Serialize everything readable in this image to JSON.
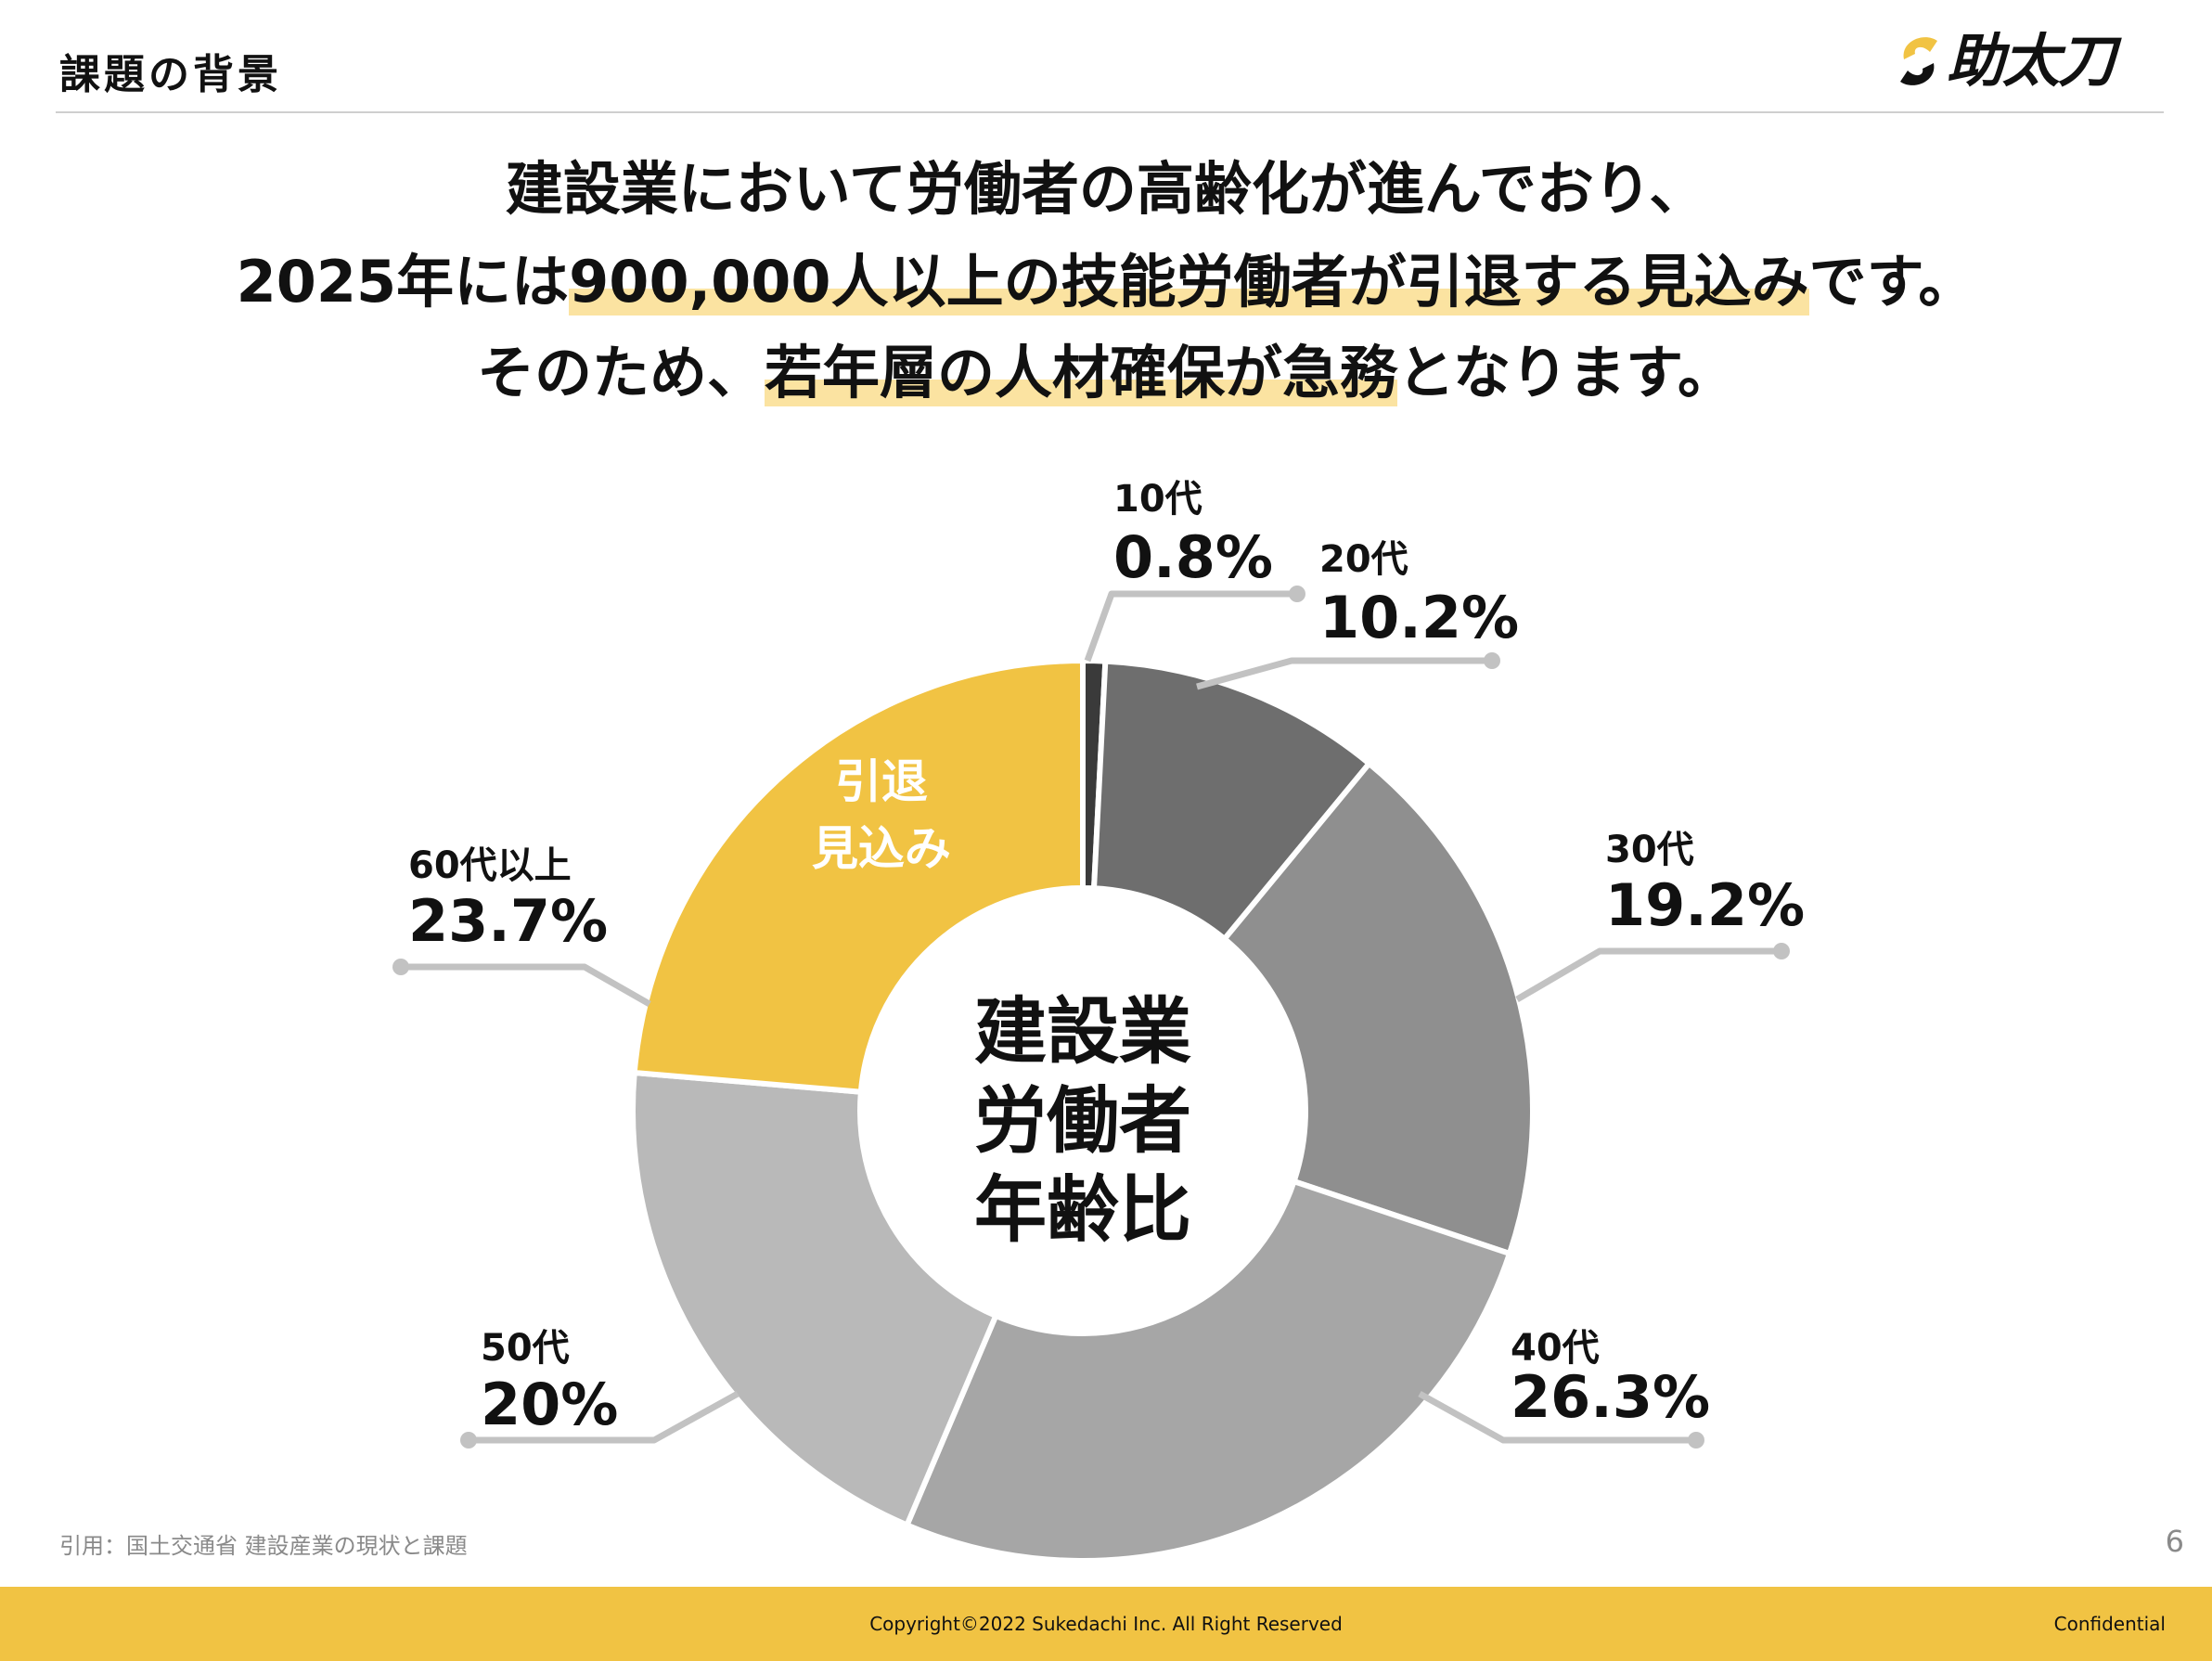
{
  "header": {
    "title": "課題の背景",
    "logo_text": "助太刀"
  },
  "headline": {
    "line1": "建設業において労働者の高齢化が進んでおり、",
    "line2_pre": "2025年には",
    "line2_highlight": "900,000人以上の技能労働者が引退する見込み",
    "line2_post": "です。",
    "line3_pre": "そのため、",
    "line3_highlight": "若年層の人材確保が急務",
    "line3_post": "となります。"
  },
  "colors": {
    "accent": "#f1c343",
    "highlight": "#fbe3a1",
    "teens": "#3a3a3a",
    "twenties": "#6e6e6e",
    "thirties": "#8f8f8f",
    "forties": "#a6a6a6",
    "fifties": "#b9b9b9",
    "leader": "#c2c2c2"
  },
  "chart_data": {
    "type": "pie",
    "variant": "donut",
    "center_label": [
      "建設業",
      "労働者",
      "年齢比"
    ],
    "categories": [
      "10代",
      "20代",
      "30代",
      "40代",
      "50代",
      "60代以上"
    ],
    "values": [
      0.8,
      10.2,
      19.2,
      26.3,
      20,
      23.7
    ],
    "value_labels": [
      "0.8%",
      "10.2%",
      "19.2%",
      "26.3%",
      "20%",
      "23.7%"
    ],
    "annotations": [
      {
        "target": "60代以上",
        "text": [
          "引退",
          "見込み"
        ]
      }
    ]
  },
  "footer": {
    "citation": "引用：国土交通省 建設産業の現状と課題",
    "page_number": "6",
    "copyright": "Copyright©2022 Sukedachi Inc. All Right Reserved",
    "confidential": "Confidential"
  }
}
